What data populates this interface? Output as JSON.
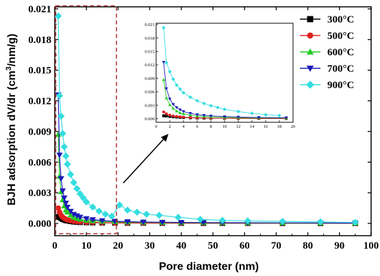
{
  "chart_data": {
    "type": "scatter",
    "title": "",
    "xlabel": "Pore diameter (nm)",
    "ylabel_parts": [
      "BJH adsorption dV/dr (cm",
      "3",
      "/nm/g",
      ")"
    ],
    "xlim": [
      0,
      100
    ],
    "ylim": [
      -0.0012,
      0.0212
    ],
    "xticks": [
      "0",
      "10",
      "20",
      "30",
      "40",
      "50",
      "60",
      "70",
      "80",
      "90",
      "100"
    ],
    "yticks": [
      "0.000",
      "0.003",
      "0.006",
      "0.009",
      "0.012",
      "0.015",
      "0.018",
      "0.021"
    ],
    "legend_position": "top-right",
    "series": [
      {
        "name": "300°C",
        "color": "#000000",
        "marker": "square",
        "x": [
          1.1,
          1.5,
          2.0,
          2.5,
          3.0,
          3.5,
          4.0,
          5.0,
          6.0,
          7.0,
          8.0,
          10.0,
          12.0,
          15.0,
          19.0,
          23.0,
          28.0,
          34.0,
          40.0,
          47.0,
          53.0,
          61.0,
          72.0,
          84.0,
          95.0
        ],
        "y": [
          0.00065,
          0.0006,
          0.0005,
          0.00042,
          0.00036,
          0.0003,
          0.00026,
          0.0002,
          0.00016,
          0.00013,
          0.00011,
          9e-05,
          7e-05,
          6e-05,
          5e-05,
          4e-05,
          4e-05,
          3e-05,
          3e-05,
          2e-05,
          2e-05,
          2e-05,
          1e-05,
          1e-05,
          1e-05
        ]
      },
      {
        "name": "500°C",
        "color": "#e02020",
        "marker": "circle",
        "x": [
          1.1,
          1.5,
          2.0,
          2.5,
          3.0,
          3.5,
          4.0,
          5.0,
          6.0,
          7.0,
          8.0,
          10.0,
          12.0,
          15.0,
          19.0,
          23.0,
          28.0,
          34.0,
          40.0,
          47.0,
          53.0,
          61.0,
          72.0,
          84.0,
          95.0
        ],
        "y": [
          0.0015,
          0.0011,
          0.0008,
          0.00062,
          0.0005,
          0.00042,
          0.00035,
          0.00027,
          0.00022,
          0.00018,
          0.00015,
          0.00012,
          0.0001,
          8e-05,
          6e-05,
          5e-05,
          4e-05,
          4e-05,
          3e-05,
          3e-05,
          3e-05,
          2e-05,
          2e-05,
          2e-05,
          2e-05
        ]
      },
      {
        "name": "600°C",
        "color": "#22cc22",
        "marker": "triangle-up",
        "x": [
          1.1,
          1.5,
          2.0,
          2.5,
          3.0,
          3.5,
          4.0,
          5.0,
          6.0,
          7.0,
          8.0,
          10.0,
          12.0,
          15.0,
          19.0,
          23.0,
          28.0,
          34.0,
          40.0,
          47.0,
          53.0,
          61.0,
          72.0,
          84.0,
          95.0
        ],
        "y": [
          0.0087,
          0.0046,
          0.0031,
          0.0023,
          0.0017,
          0.0013,
          0.0011,
          0.0008,
          0.0006,
          0.0005,
          0.0004,
          0.0003,
          0.00025,
          0.0002,
          0.00016,
          0.00013,
          0.00011,
          9e-05,
          8e-05,
          7e-05,
          6e-05,
          5e-05,
          4e-05,
          4e-05,
          3e-05
        ]
      },
      {
        "name": "700°C",
        "color": "#1a1ab8",
        "marker": "triangle-down",
        "x": [
          1.1,
          1.5,
          2.0,
          2.5,
          3.0,
          3.5,
          4.0,
          5.0,
          6.0,
          7.0,
          8.0,
          10.0,
          12.0,
          15.0,
          19.0,
          23.0,
          28.0,
          34.0,
          40.0,
          47.0,
          53.0,
          61.0,
          72.0,
          84.0,
          95.0
        ],
        "y": [
          0.0126,
          0.0067,
          0.0044,
          0.0032,
          0.0025,
          0.002,
          0.0016,
          0.0012,
          0.0009,
          0.00075,
          0.00062,
          0.00048,
          0.00038,
          0.00028,
          0.00022,
          0.00018,
          0.00014,
          0.00012,
          0.0001,
          9e-05,
          8e-05,
          7e-05,
          6e-05,
          5e-05,
          4e-05
        ]
      },
      {
        "name": "900°C",
        "color": "#33dde0",
        "marker": "diamond",
        "x": [
          1.1,
          1.5,
          2.0,
          2.5,
          3.0,
          3.5,
          4.0,
          5.0,
          6.0,
          7.0,
          8.0,
          9.0,
          10.0,
          12.0,
          14.0,
          16.0,
          18.0,
          20.5,
          23.0,
          26.0,
          29.0,
          33.0,
          39.0,
          46.0,
          53.0,
          61.0,
          72.0,
          84.0,
          95.0
        ],
        "y": [
          0.0203,
          0.0125,
          0.0105,
          0.0088,
          0.0075,
          0.0066,
          0.0058,
          0.0048,
          0.004,
          0.0034,
          0.0029,
          0.0025,
          0.0021,
          0.0016,
          0.0012,
          0.0009,
          0.0007,
          0.0018,
          0.0013,
          0.0011,
          0.0009,
          0.0008,
          0.0006,
          0.0004,
          0.0003,
          0.00025,
          0.0002,
          0.00015,
          0.0001
        ]
      }
    ],
    "inset": {
      "xlim": [
        0,
        20
      ],
      "ylim": [
        -0.0008,
        0.0213
      ],
      "xticks": [
        "0",
        "2",
        "4",
        "6",
        "8",
        "10",
        "12",
        "14",
        "16",
        "18",
        "20"
      ],
      "yticks": [
        "0.000",
        "0.003",
        "0.006",
        "0.009",
        "0.012",
        "0.015",
        "0.018",
        "0.021"
      ],
      "zoom_region": {
        "x": [
          0.3,
          19.5
        ],
        "y": [
          -0.001,
          0.0213
        ]
      }
    }
  }
}
